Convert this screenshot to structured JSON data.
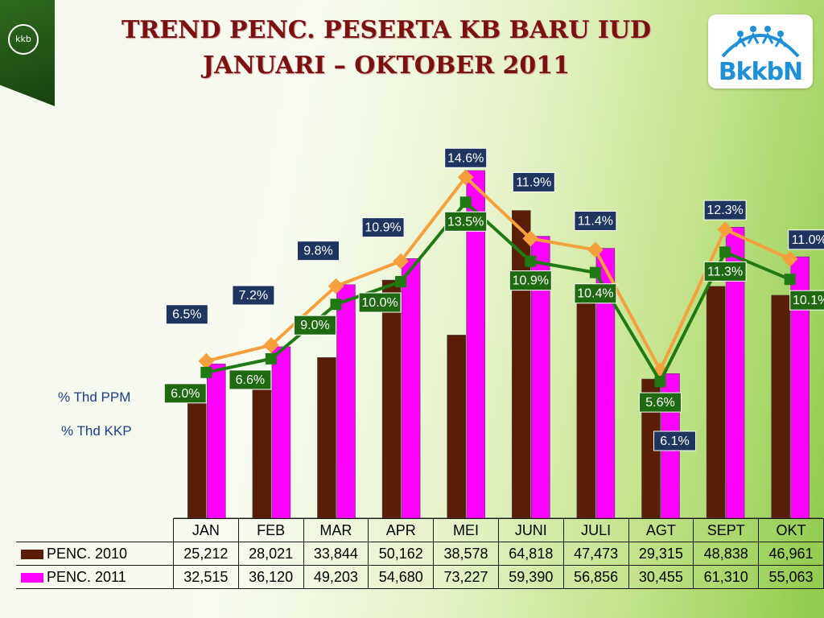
{
  "header": {
    "title_line1": "TREND PENC. PESERTA KB BARU IUD",
    "title_line2": "JANUARI – OKTOBER 2011",
    "corner_logo": "kkb",
    "brand": "BkkbN"
  },
  "colors": {
    "bar2010": "#5a1e08",
    "bar2011": "#ff00ff",
    "ppm": "#f5a03c",
    "kkp": "#1f7a12",
    "label_ppm_bg": "#1e3560",
    "label_kkp_bg": "#1f6a10"
  },
  "chart_data": {
    "type": "bar",
    "categories": [
      "JAN",
      "FEB",
      "MAR",
      "APR",
      "MEI",
      "JUNI",
      "JULI",
      "AGT",
      "SEPT",
      "OKT"
    ],
    "series": [
      {
        "name": "PENC. 2010",
        "values": [
          25212,
          28021,
          33844,
          50162,
          38578,
          64818,
          47473,
          29315,
          48838,
          46961
        ]
      },
      {
        "name": "PENC. 2011",
        "values": [
          32515,
          36120,
          49203,
          54680,
          73227,
          59390,
          56856,
          30455,
          61310,
          55063
        ]
      }
    ],
    "lines": [
      {
        "name": "% Thd PPM",
        "values": [
          6.5,
          7.2,
          9.8,
          10.9,
          14.6,
          11.9,
          11.4,
          6.1,
          12.3,
          11.0
        ],
        "labels": [
          "6.5%",
          "7.2%",
          "9.8%",
          "10.9%",
          "14.6%",
          "11.9%",
          "11.4%",
          "6.1%",
          "12.3%",
          "11.0%"
        ]
      },
      {
        "name": "% Thd KKP",
        "values": [
          6.0,
          6.6,
          9.0,
          10.0,
          13.5,
          10.9,
          10.4,
          5.6,
          11.3,
          10.1
        ],
        "labels": [
          "6.0%",
          "6.6%",
          "9.0%",
          "10.0%",
          "13.5%",
          "10.9%",
          "10.4%",
          "5.6%",
          "11.3%",
          "10.1%"
        ]
      }
    ],
    "title": "TREND PENC. PESERTA KB BARU IUD JANUARI – OKTOBER 2011",
    "ylim": [
      0,
      80000
    ],
    "grid": false,
    "legend": "data-table-bottom"
  },
  "table": {
    "rows": [
      {
        "label": "PENC. 2010",
        "values": [
          "25,212",
          "28,021",
          "33,844",
          "50,162",
          "38,578",
          "64,818",
          "47,473",
          "29,315",
          "48,838",
          "46,961"
        ]
      },
      {
        "label": "PENC. 2011",
        "values": [
          "32,515",
          "36,120",
          "49,203",
          "54,680",
          "73,227",
          "59,390",
          "56,856",
          "30,455",
          "61,310",
          "55,063"
        ]
      }
    ]
  }
}
